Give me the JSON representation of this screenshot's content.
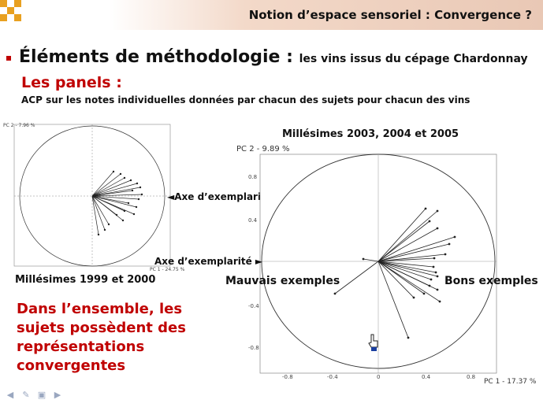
{
  "header": {
    "title": "Notion d’espace sensoriel : Convergence ?"
  },
  "main": {
    "heading": "Éléments de méthodologie : ",
    "heading_sub": "les vins issus du cépage Chardonnay",
    "section_title": "Les panels :",
    "section_desc": "ACP sur les notes individuelles données par chacun des sujets pour chacun des vins"
  },
  "left_plot": {
    "pc2_label": "PC 2 - 7.96 %",
    "pc1_label": "PC 1 - 24.75 %",
    "annotation": "◄Axe d’exemplarité",
    "caption": "Millésimes 1999 et 2000"
  },
  "right_plot": {
    "caption": "Millésimes 2003, 2004 et 2005",
    "pc2_label": "PC 2 -  9.89 %",
    "pc1_label": "PC 1 -  17.37 %",
    "annotation": "Axe d’exemplarité ►",
    "y_ticks": [
      "0.8",
      "0.4",
      "0",
      "-0.4",
      "-0.8"
    ],
    "x_ticks": [
      "-0.8",
      "-0.4",
      "0",
      "0.4",
      "0.8"
    ],
    "label_left": "Mauvais exemples",
    "label_right": "Bons exemples"
  },
  "conclusion": {
    "lines": [
      "Dans l’ensemble, les",
      "sujets possèdent des",
      "représentations",
      "convergentes"
    ]
  },
  "colors": {
    "accent": "#c00000",
    "logo_orange": "#e8a020"
  },
  "nav_icons": [
    "arrow-left-icon",
    "pen-icon",
    "slide-icon",
    "arrow-right-icon"
  ]
}
